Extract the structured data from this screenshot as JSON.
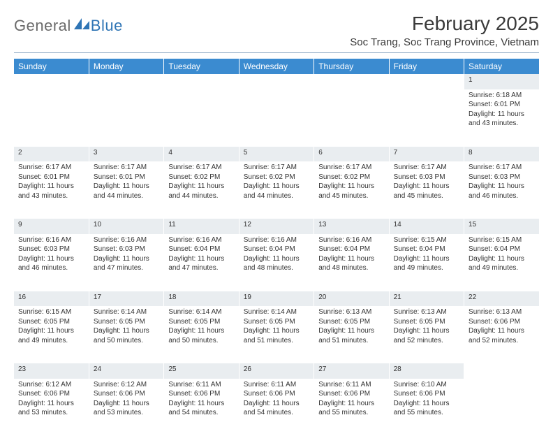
{
  "logo": {
    "general": "General",
    "blue": "Blue",
    "shape_color": "#2f75b5"
  },
  "title": "February 2025",
  "location": "Soc Trang, Soc Trang Province, Vietnam",
  "colors": {
    "header_bg": "#3b8bd0",
    "header_text": "#ffffff",
    "daynum_bg": "#e9edf0",
    "text": "#333333",
    "rule": "#8faac4"
  },
  "day_headers": [
    "Sunday",
    "Monday",
    "Tuesday",
    "Wednesday",
    "Thursday",
    "Friday",
    "Saturday"
  ],
  "weeks": [
    [
      null,
      null,
      null,
      null,
      null,
      null,
      {
        "n": "1",
        "sr": "6:18 AM",
        "ss": "6:01 PM",
        "dl": "11 hours and 43 minutes."
      }
    ],
    [
      {
        "n": "2",
        "sr": "6:17 AM",
        "ss": "6:01 PM",
        "dl": "11 hours and 43 minutes."
      },
      {
        "n": "3",
        "sr": "6:17 AM",
        "ss": "6:01 PM",
        "dl": "11 hours and 44 minutes."
      },
      {
        "n": "4",
        "sr": "6:17 AM",
        "ss": "6:02 PM",
        "dl": "11 hours and 44 minutes."
      },
      {
        "n": "5",
        "sr": "6:17 AM",
        "ss": "6:02 PM",
        "dl": "11 hours and 44 minutes."
      },
      {
        "n": "6",
        "sr": "6:17 AM",
        "ss": "6:02 PM",
        "dl": "11 hours and 45 minutes."
      },
      {
        "n": "7",
        "sr": "6:17 AM",
        "ss": "6:03 PM",
        "dl": "11 hours and 45 minutes."
      },
      {
        "n": "8",
        "sr": "6:17 AM",
        "ss": "6:03 PM",
        "dl": "11 hours and 46 minutes."
      }
    ],
    [
      {
        "n": "9",
        "sr": "6:16 AM",
        "ss": "6:03 PM",
        "dl": "11 hours and 46 minutes."
      },
      {
        "n": "10",
        "sr": "6:16 AM",
        "ss": "6:03 PM",
        "dl": "11 hours and 47 minutes."
      },
      {
        "n": "11",
        "sr": "6:16 AM",
        "ss": "6:04 PM",
        "dl": "11 hours and 47 minutes."
      },
      {
        "n": "12",
        "sr": "6:16 AM",
        "ss": "6:04 PM",
        "dl": "11 hours and 48 minutes."
      },
      {
        "n": "13",
        "sr": "6:16 AM",
        "ss": "6:04 PM",
        "dl": "11 hours and 48 minutes."
      },
      {
        "n": "14",
        "sr": "6:15 AM",
        "ss": "6:04 PM",
        "dl": "11 hours and 49 minutes."
      },
      {
        "n": "15",
        "sr": "6:15 AM",
        "ss": "6:04 PM",
        "dl": "11 hours and 49 minutes."
      }
    ],
    [
      {
        "n": "16",
        "sr": "6:15 AM",
        "ss": "6:05 PM",
        "dl": "11 hours and 49 minutes."
      },
      {
        "n": "17",
        "sr": "6:14 AM",
        "ss": "6:05 PM",
        "dl": "11 hours and 50 minutes."
      },
      {
        "n": "18",
        "sr": "6:14 AM",
        "ss": "6:05 PM",
        "dl": "11 hours and 50 minutes."
      },
      {
        "n": "19",
        "sr": "6:14 AM",
        "ss": "6:05 PM",
        "dl": "11 hours and 51 minutes."
      },
      {
        "n": "20",
        "sr": "6:13 AM",
        "ss": "6:05 PM",
        "dl": "11 hours and 51 minutes."
      },
      {
        "n": "21",
        "sr": "6:13 AM",
        "ss": "6:05 PM",
        "dl": "11 hours and 52 minutes."
      },
      {
        "n": "22",
        "sr": "6:13 AM",
        "ss": "6:06 PM",
        "dl": "11 hours and 52 minutes."
      }
    ],
    [
      {
        "n": "23",
        "sr": "6:12 AM",
        "ss": "6:06 PM",
        "dl": "11 hours and 53 minutes."
      },
      {
        "n": "24",
        "sr": "6:12 AM",
        "ss": "6:06 PM",
        "dl": "11 hours and 53 minutes."
      },
      {
        "n": "25",
        "sr": "6:11 AM",
        "ss": "6:06 PM",
        "dl": "11 hours and 54 minutes."
      },
      {
        "n": "26",
        "sr": "6:11 AM",
        "ss": "6:06 PM",
        "dl": "11 hours and 54 minutes."
      },
      {
        "n": "27",
        "sr": "6:11 AM",
        "ss": "6:06 PM",
        "dl": "11 hours and 55 minutes."
      },
      {
        "n": "28",
        "sr": "6:10 AM",
        "ss": "6:06 PM",
        "dl": "11 hours and 55 minutes."
      },
      null
    ]
  ],
  "labels": {
    "sunrise": "Sunrise:",
    "sunset": "Sunset:",
    "daylight": "Daylight:"
  }
}
